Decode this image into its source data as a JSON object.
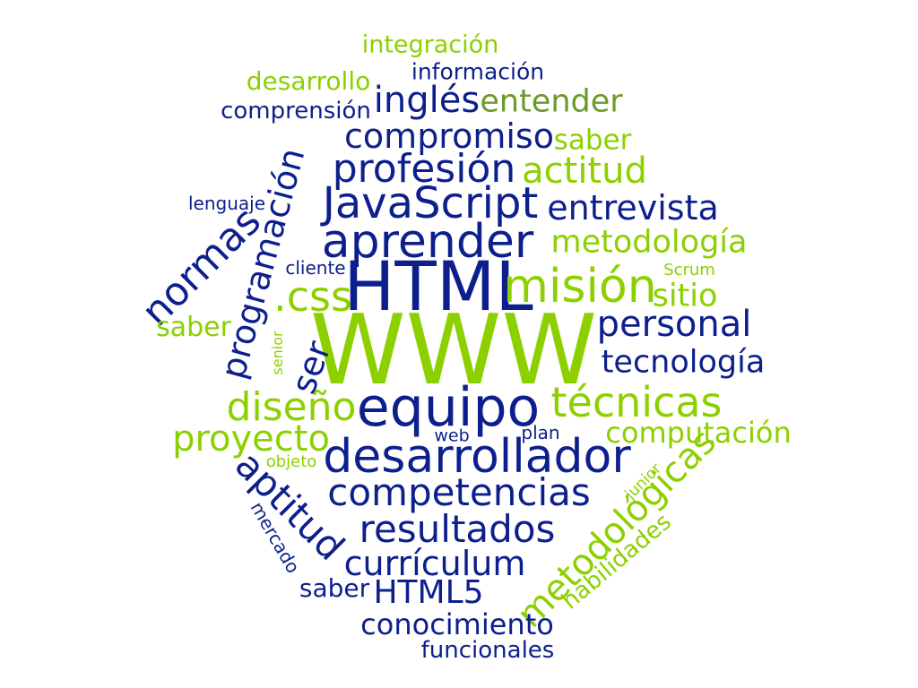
{
  "palette": {
    "blue": "#0d1f8c",
    "green": "#8cd000",
    "olive": "#6a9a2c"
  },
  "words": [
    {
      "text": "integración",
      "tone": "green"
    },
    {
      "text": "información",
      "tone": "blue"
    },
    {
      "text": "desarrollo",
      "tone": "green"
    },
    {
      "text": "inglés",
      "tone": "blue"
    },
    {
      "text": "entender",
      "tone": "olive"
    },
    {
      "text": "comprensión",
      "tone": "blue"
    },
    {
      "text": "compromiso",
      "tone": "blue"
    },
    {
      "text": "saber",
      "tone": "green"
    },
    {
      "text": "profesión",
      "tone": "blue"
    },
    {
      "text": "actitud",
      "tone": "green"
    },
    {
      "text": "programación",
      "tone": "blue"
    },
    {
      "text": "lenguaje",
      "tone": "blue"
    },
    {
      "text": "JavaScript",
      "tone": "blue"
    },
    {
      "text": "entrevista",
      "tone": "blue"
    },
    {
      "text": "aprender",
      "tone": "blue"
    },
    {
      "text": "metodología",
      "tone": "green"
    },
    {
      "text": "normas",
      "tone": "blue"
    },
    {
      "text": "cliente",
      "tone": "blue"
    },
    {
      "text": "Scrum",
      "tone": "green"
    },
    {
      "text": ".css",
      "tone": "green"
    },
    {
      "text": "HTML",
      "tone": "blue"
    },
    {
      "text": "misión",
      "tone": "green"
    },
    {
      "text": "sitio",
      "tone": "green"
    },
    {
      "text": "saber",
      "tone": "green"
    },
    {
      "text": "personal",
      "tone": "blue"
    },
    {
      "text": "senior",
      "tone": "green"
    },
    {
      "text": "WWW",
      "tone": "green"
    },
    {
      "text": "ser",
      "tone": "blue"
    },
    {
      "text": "tecnología",
      "tone": "blue"
    },
    {
      "text": "diseño",
      "tone": "green"
    },
    {
      "text": "equipo",
      "tone": "blue"
    },
    {
      "text": "técnicas",
      "tone": "green"
    },
    {
      "text": "proyecto",
      "tone": "green"
    },
    {
      "text": "web",
      "tone": "blue"
    },
    {
      "text": "plan",
      "tone": "blue"
    },
    {
      "text": "computación",
      "tone": "green"
    },
    {
      "text": "objeto",
      "tone": "green"
    },
    {
      "text": "desarrollador",
      "tone": "blue"
    },
    {
      "text": "aptitud",
      "tone": "blue"
    },
    {
      "text": "junior",
      "tone": "green"
    },
    {
      "text": "metodológicas",
      "tone": "green"
    },
    {
      "text": "competencias",
      "tone": "blue"
    },
    {
      "text": "mercado",
      "tone": "blue"
    },
    {
      "text": "resultados",
      "tone": "blue"
    },
    {
      "text": "habilidades",
      "tone": "green"
    },
    {
      "text": "currículum",
      "tone": "blue"
    },
    {
      "text": "saber",
      "tone": "blue"
    },
    {
      "text": "HTML5",
      "tone": "blue"
    },
    {
      "text": "conocimiento",
      "tone": "blue"
    },
    {
      "text": "funcionales",
      "tone": "blue"
    }
  ]
}
